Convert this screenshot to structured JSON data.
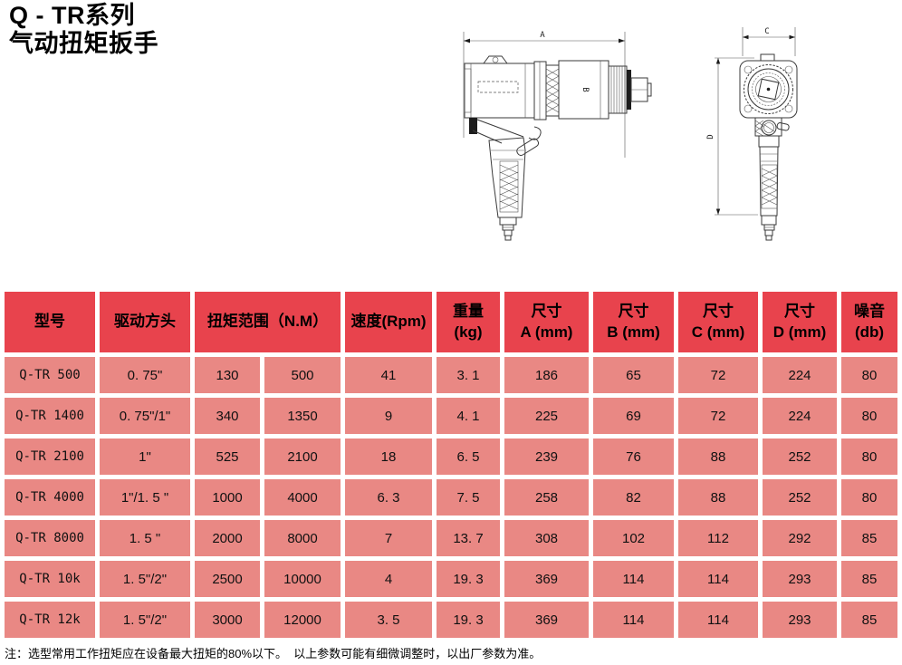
{
  "page": {
    "title_line1": "Q - TR系列",
    "title_line2": "气动扭矩扳手",
    "footnote": "注：选型常用工作扭矩应在设备最大扭矩的80%以下。  以上参数可能有细微调整时，以出厂参数为准。"
  },
  "colors": {
    "header_bg": "#e8434d",
    "row_bg": "#e98884",
    "text": "#111111"
  },
  "drawings": {
    "side_view": {
      "dim_a": "A",
      "dim_b": "B"
    },
    "front_view": {
      "dim_c": "C",
      "dim_d": "D"
    }
  },
  "table": {
    "headers": {
      "model": "型号",
      "drive": "驱动方头",
      "torque": "扭矩范围（N.M）",
      "speed": "速度(Rpm)",
      "weight": [
        "重量",
        "(kg)"
      ],
      "dim_a": [
        "尺寸",
        "A (mm)"
      ],
      "dim_b": [
        "尺寸",
        "B (mm)"
      ],
      "dim_c": [
        "尺寸",
        "C (mm)"
      ],
      "dim_d": [
        "尺寸",
        "D (mm)"
      ],
      "noise": [
        "噪音",
        "(db)"
      ]
    },
    "rows": [
      [
        "Q-TR 500",
        "0. 75\"",
        "130",
        "500",
        "41",
        "3. 1",
        "186",
        "65",
        "72",
        "224",
        "80"
      ],
      [
        "Q-TR 1400",
        "0. 75\"/1\"",
        "340",
        "1350",
        "9",
        "4. 1",
        "225",
        "69",
        "72",
        "224",
        "80"
      ],
      [
        "Q-TR 2100",
        "1\"",
        "525",
        "2100",
        "18",
        "6. 5",
        "239",
        "76",
        "88",
        "252",
        "80"
      ],
      [
        "Q-TR 4000",
        "1\"/1. 5 \"",
        "1000",
        "4000",
        "6. 3",
        "7. 5",
        "258",
        "82",
        "88",
        "252",
        "80"
      ],
      [
        "Q-TR 8000",
        "1. 5 \"",
        "2000",
        "8000",
        "7",
        "13. 7",
        "308",
        "102",
        "112",
        "292",
        "85"
      ],
      [
        "Q-TR 10k",
        "1. 5\"/2\"",
        "2500",
        "10000",
        "4",
        "19. 3",
        "369",
        "114",
        "114",
        "293",
        "85"
      ],
      [
        "Q-TR 12k",
        "1. 5\"/2\"",
        "3000",
        "12000",
        "3. 5",
        "19. 3",
        "369",
        "114",
        "114",
        "293",
        "85"
      ]
    ]
  }
}
